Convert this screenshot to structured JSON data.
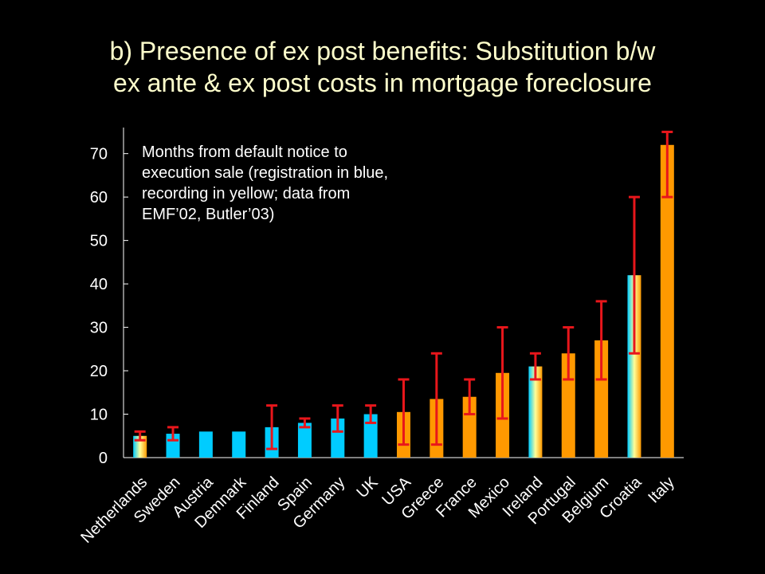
{
  "slide": {
    "title_line1": "b) Presence of ex post benefits: Substitution b/w",
    "title_line2": "ex ante & ex post costs in mortgage foreclosure"
  },
  "chart_data": {
    "type": "bar",
    "annotation": "Months from default notice to\nexecution sale (registration in blue,\nrecording in yellow; data from\nEMF’02, Butler’03)",
    "categories": [
      "Netherlands",
      "Sweden",
      "Austria",
      "Demnark",
      "Finland",
      "Spain",
      "Germany",
      "UK",
      "USA",
      "Greece",
      "France",
      "Mexico",
      "Ireland",
      "Portugal",
      "Belgium",
      "Croatia",
      "Italy"
    ],
    "values": [
      5,
      5.5,
      6,
      6,
      7,
      8,
      9,
      10,
      10.5,
      13.5,
      14,
      19.5,
      21,
      24,
      27,
      42,
      72
    ],
    "bar_colors": [
      "mixed",
      "blue",
      "blue",
      "blue",
      "blue",
      "blue",
      "blue",
      "blue",
      "orange",
      "orange",
      "orange",
      "orange",
      "mixed",
      "orange",
      "orange",
      "mixed",
      "orange"
    ],
    "error_bars": [
      [
        4,
        6
      ],
      [
        4,
        7
      ],
      null,
      null,
      [
        2,
        12
      ],
      [
        7,
        9
      ],
      [
        6,
        12
      ],
      [
        8,
        12
      ],
      [
        3,
        18
      ],
      [
        3,
        24
      ],
      [
        10,
        18
      ],
      [
        9,
        30
      ],
      [
        18,
        24
      ],
      [
        18,
        30
      ],
      [
        18,
        36
      ],
      [
        24,
        60
      ],
      [
        60,
        75
      ]
    ],
    "yticks": [
      0,
      10,
      20,
      30,
      40,
      50,
      60,
      70
    ],
    "ylim": [
      0,
      76
    ],
    "colors": {
      "registration": "#00ccff",
      "recording": "#ff9900",
      "error_bar": "#e8161b",
      "axis": "#ffffff",
      "tick_label": "#ffffff"
    }
  }
}
